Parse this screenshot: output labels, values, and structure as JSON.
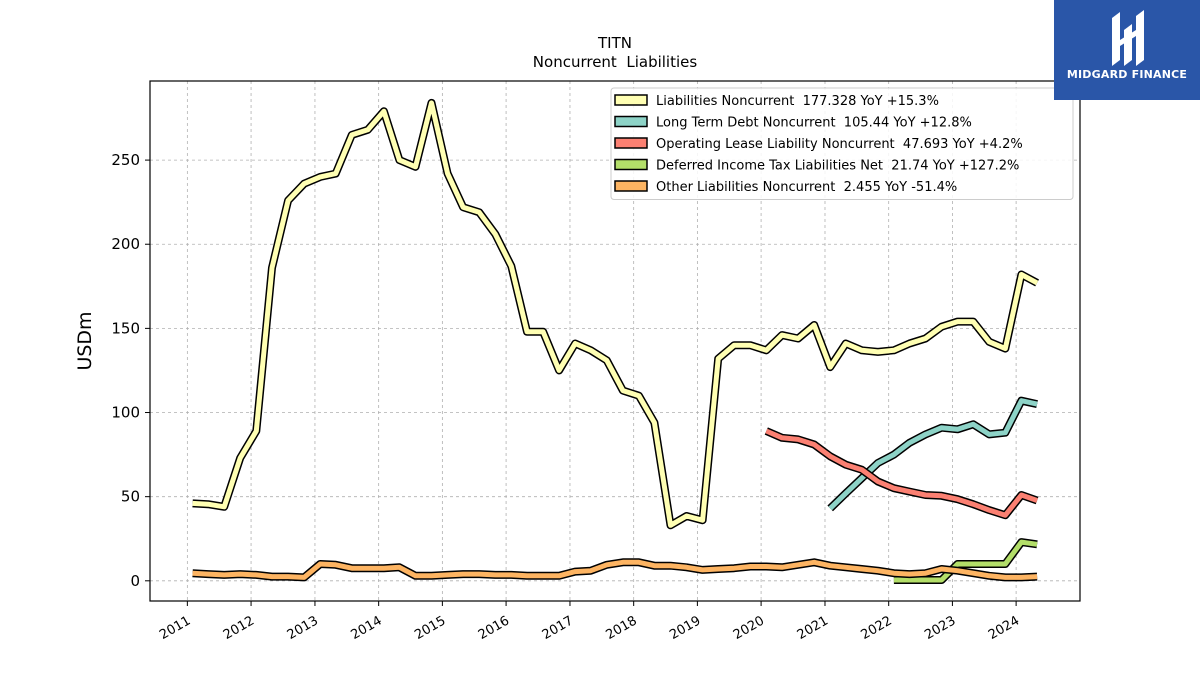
{
  "branding": {
    "name": "MIDGARD FINANCE",
    "bg_color": "#2a56a8"
  },
  "chart_data": {
    "type": "line",
    "title": "TITN",
    "subtitle": "Noncurrent  Liabilities",
    "ylabel": "USDm",
    "xlabel": "",
    "xlim": [
      "2010-06-01",
      "2025-01-01"
    ],
    "ylim": [
      -12,
      297
    ],
    "yticks": [
      0,
      50,
      100,
      150,
      200,
      250
    ],
    "xticks": [
      "2011",
      "2012",
      "2013",
      "2014",
      "2015",
      "2016",
      "2017",
      "2018",
      "2019",
      "2020",
      "2021",
      "2022",
      "2023",
      "2024"
    ],
    "grid": true,
    "legend_position": "top-right",
    "series": [
      {
        "name": "Liabilities Noncurrent  177.328 YoY +15.3%",
        "color": "#ffffb3",
        "points": [
          [
            "2011-01-31",
            46
          ],
          [
            "2011-04-30",
            45.5
          ],
          [
            "2011-07-31",
            44
          ],
          [
            "2011-10-31",
            73
          ],
          [
            "2012-01-31",
            89
          ],
          [
            "2012-04-30",
            186
          ],
          [
            "2012-07-31",
            226
          ],
          [
            "2012-10-31",
            236
          ],
          [
            "2013-01-31",
            240
          ],
          [
            "2013-04-30",
            242
          ],
          [
            "2013-07-31",
            265
          ],
          [
            "2013-10-31",
            268
          ],
          [
            "2014-01-31",
            279
          ],
          [
            "2014-04-30",
            250
          ],
          [
            "2014-07-31",
            246
          ],
          [
            "2014-10-31",
            284
          ],
          [
            "2015-01-31",
            242
          ],
          [
            "2015-04-30",
            222
          ],
          [
            "2015-07-31",
            219
          ],
          [
            "2015-10-31",
            206
          ],
          [
            "2016-01-31",
            187
          ],
          [
            "2016-04-30",
            148
          ],
          [
            "2016-07-31",
            148
          ],
          [
            "2016-10-31",
            125
          ],
          [
            "2017-01-31",
            141
          ],
          [
            "2017-04-30",
            137
          ],
          [
            "2017-07-31",
            131
          ],
          [
            "2017-10-31",
            113
          ],
          [
            "2018-01-31",
            110
          ],
          [
            "2018-04-30",
            94
          ],
          [
            "2018-07-31",
            33
          ],
          [
            "2018-10-31",
            38.5
          ],
          [
            "2019-01-31",
            36
          ],
          [
            "2019-04-30",
            132
          ],
          [
            "2019-07-31",
            140
          ],
          [
            "2019-10-31",
            140
          ],
          [
            "2020-01-31",
            137
          ],
          [
            "2020-04-30",
            146
          ],
          [
            "2020-07-31",
            144
          ],
          [
            "2020-10-31",
            152
          ],
          [
            "2021-01-31",
            127
          ],
          [
            "2021-04-30",
            141
          ],
          [
            "2021-07-31",
            137
          ],
          [
            "2021-10-31",
            136
          ],
          [
            "2022-01-31",
            137
          ],
          [
            "2022-04-30",
            141
          ],
          [
            "2022-07-31",
            144
          ],
          [
            "2022-10-31",
            151
          ],
          [
            "2023-01-31",
            154
          ],
          [
            "2023-04-30",
            154
          ],
          [
            "2023-07-31",
            142
          ],
          [
            "2023-10-31",
            138
          ],
          [
            "2024-01-31",
            182
          ],
          [
            "2024-04-30",
            177
          ]
        ]
      },
      {
        "name": "Long Term Debt Noncurrent  105.44 YoY +12.8%",
        "color": "#8dd3c7",
        "points": [
          [
            "2021-01-31",
            43
          ],
          [
            "2021-04-30",
            52
          ],
          [
            "2021-07-31",
            61
          ],
          [
            "2021-10-31",
            70
          ],
          [
            "2022-01-31",
            75
          ],
          [
            "2022-04-30",
            82
          ],
          [
            "2022-07-31",
            87
          ],
          [
            "2022-10-31",
            91
          ],
          [
            "2023-01-31",
            90
          ],
          [
            "2023-04-30",
            93
          ],
          [
            "2023-07-31",
            87
          ],
          [
            "2023-10-31",
            88
          ],
          [
            "2024-01-31",
            107
          ],
          [
            "2024-04-30",
            105
          ]
        ]
      },
      {
        "name": "Operating Lease Liability Noncurrent  47.693 YoY +4.2%",
        "color": "#fb8072",
        "points": [
          [
            "2020-01-31",
            89
          ],
          [
            "2020-04-30",
            85
          ],
          [
            "2020-07-31",
            84
          ],
          [
            "2020-10-31",
            81
          ],
          [
            "2021-01-31",
            74
          ],
          [
            "2021-04-30",
            69
          ],
          [
            "2021-07-31",
            66
          ],
          [
            "2021-10-31",
            59
          ],
          [
            "2022-01-31",
            55
          ],
          [
            "2022-04-30",
            53
          ],
          [
            "2022-07-31",
            51
          ],
          [
            "2022-10-31",
            50.5
          ],
          [
            "2023-01-31",
            48.5
          ],
          [
            "2023-04-30",
            45.5
          ],
          [
            "2023-07-31",
            42
          ],
          [
            "2023-10-31",
            39
          ],
          [
            "2024-01-31",
            51
          ],
          [
            "2024-04-30",
            47.7
          ]
        ]
      },
      {
        "name": "Deferred Income Tax Liabilities Net  21.74 YoY +127.2%",
        "color": "#b3de69",
        "points": [
          [
            "2022-01-31",
            0.5
          ],
          [
            "2022-04-30",
            0.5
          ],
          [
            "2022-07-31",
            0.5
          ],
          [
            "2022-10-31",
            0.5
          ],
          [
            "2023-01-31",
            10
          ],
          [
            "2023-04-30",
            10
          ],
          [
            "2023-07-31",
            10
          ],
          [
            "2023-10-31",
            10
          ],
          [
            "2024-01-31",
            23
          ],
          [
            "2024-04-30",
            21.7
          ]
        ]
      },
      {
        "name": "Other Liabilities Noncurrent  2.455 YoY -51.4%",
        "color": "#fdb462",
        "points": [
          [
            "2011-01-31",
            4.5
          ],
          [
            "2011-04-30",
            4
          ],
          [
            "2011-07-31",
            3.5
          ],
          [
            "2011-10-31",
            4
          ],
          [
            "2012-01-31",
            3.5
          ],
          [
            "2012-04-30",
            2.5
          ],
          [
            "2012-07-31",
            2.5
          ],
          [
            "2012-10-31",
            2
          ],
          [
            "2013-01-31",
            10
          ],
          [
            "2013-04-30",
            9.5
          ],
          [
            "2013-07-31",
            7.5
          ],
          [
            "2013-10-31",
            7.5
          ],
          [
            "2014-01-31",
            7.5
          ],
          [
            "2014-04-30",
            8
          ],
          [
            "2014-07-31",
            3
          ],
          [
            "2014-10-31",
            3
          ],
          [
            "2015-01-31",
            3.5
          ],
          [
            "2015-04-30",
            4
          ],
          [
            "2015-07-31",
            4
          ],
          [
            "2015-10-31",
            3.5
          ],
          [
            "2016-01-31",
            3.5
          ],
          [
            "2016-04-30",
            3
          ],
          [
            "2016-07-31",
            3
          ],
          [
            "2016-10-31",
            3
          ],
          [
            "2017-01-31",
            5.5
          ],
          [
            "2017-04-30",
            6
          ],
          [
            "2017-07-31",
            9.5
          ],
          [
            "2017-10-31",
            11
          ],
          [
            "2018-01-31",
            11
          ],
          [
            "2018-04-30",
            9
          ],
          [
            "2018-07-31",
            9
          ],
          [
            "2018-10-31",
            8
          ],
          [
            "2019-01-31",
            6.5
          ],
          [
            "2019-04-30",
            7
          ],
          [
            "2019-07-31",
            7.5
          ],
          [
            "2019-10-31",
            8.5
          ],
          [
            "2020-01-31",
            8.5
          ],
          [
            "2020-04-30",
            8
          ],
          [
            "2020-07-31",
            9.5
          ],
          [
            "2020-10-31",
            11
          ],
          [
            "2021-01-31",
            9
          ],
          [
            "2021-04-30",
            8
          ],
          [
            "2021-07-31",
            7
          ],
          [
            "2021-10-31",
            6
          ],
          [
            "2022-01-31",
            4.5
          ],
          [
            "2022-04-30",
            4
          ],
          [
            "2022-07-31",
            4.5
          ],
          [
            "2022-10-31",
            7
          ],
          [
            "2023-01-31",
            6
          ],
          [
            "2023-04-30",
            4.5
          ],
          [
            "2023-07-31",
            3
          ],
          [
            "2023-10-31",
            2
          ],
          [
            "2024-01-31",
            2
          ],
          [
            "2024-04-30",
            2.5
          ]
        ]
      }
    ]
  }
}
